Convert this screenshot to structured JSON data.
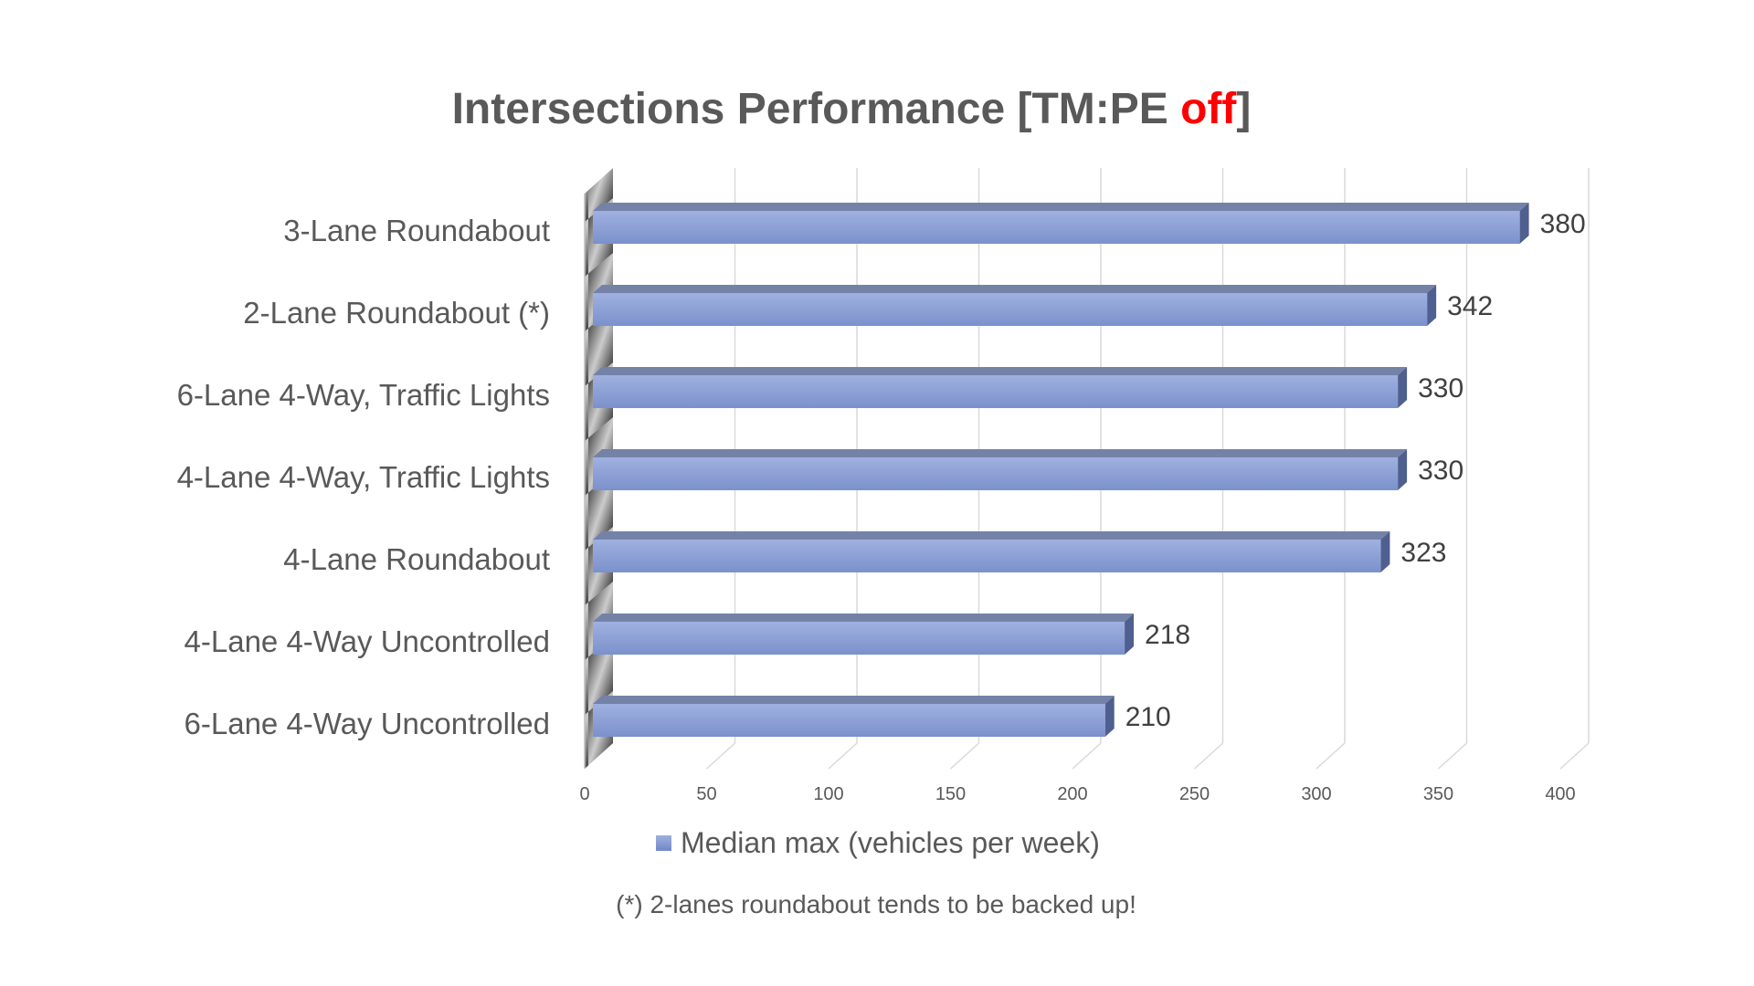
{
  "chart_data": {
    "type": "bar",
    "orientation": "horizontal",
    "title": "Intersections Performance [TM:PE off]",
    "title_parts": {
      "main": "Intersections Performance [TM:PE ",
      "highlight": "off",
      "end": "]"
    },
    "categories": [
      "3-Lane Roundabout",
      "2-Lane Roundabout (*)",
      "6-Lane 4-Way, Traffic Lights",
      "4-Lane 4-Way, Traffic Lights",
      "4-Lane Roundabout",
      "4-Lane 4-Way Uncontrolled",
      "6-Lane 4-Way Uncontrolled"
    ],
    "series": [
      {
        "name": "Median max (vehicles per week)",
        "values": [
          380,
          342,
          330,
          330,
          323,
          218,
          210
        ],
        "color": "#8fa3da"
      }
    ],
    "xlim": [
      0,
      400
    ],
    "xticks": [
      0,
      50,
      100,
      150,
      200,
      250,
      300,
      350,
      400
    ],
    "grid": true,
    "legend_position": "bottom",
    "highlight_color": "#ff0000",
    "footnote": "(*) 2-lanes roundabout tends to be backed up!"
  }
}
